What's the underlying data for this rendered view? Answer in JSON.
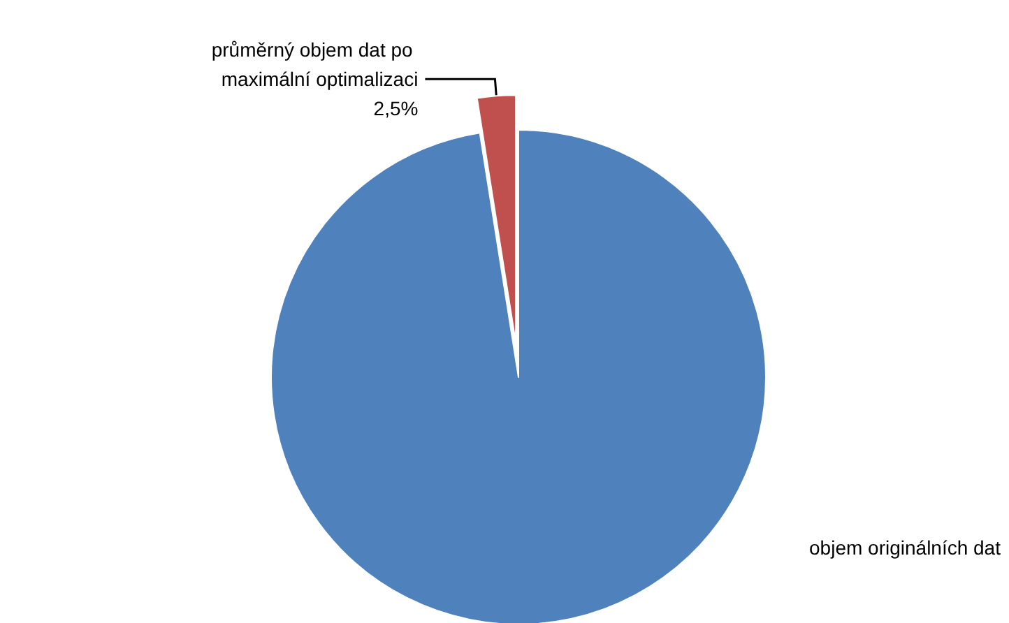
{
  "chart_data": {
    "type": "pie",
    "categories": [
      "objem originálních dat",
      "průměrný objem dat po maximální optimalizaci"
    ],
    "values": [
      97.5,
      2.5
    ],
    "value_labels": [
      null,
      "2,5%"
    ],
    "colors": [
      "#4f81bd",
      "#c0504d"
    ],
    "legend": false
  }
}
